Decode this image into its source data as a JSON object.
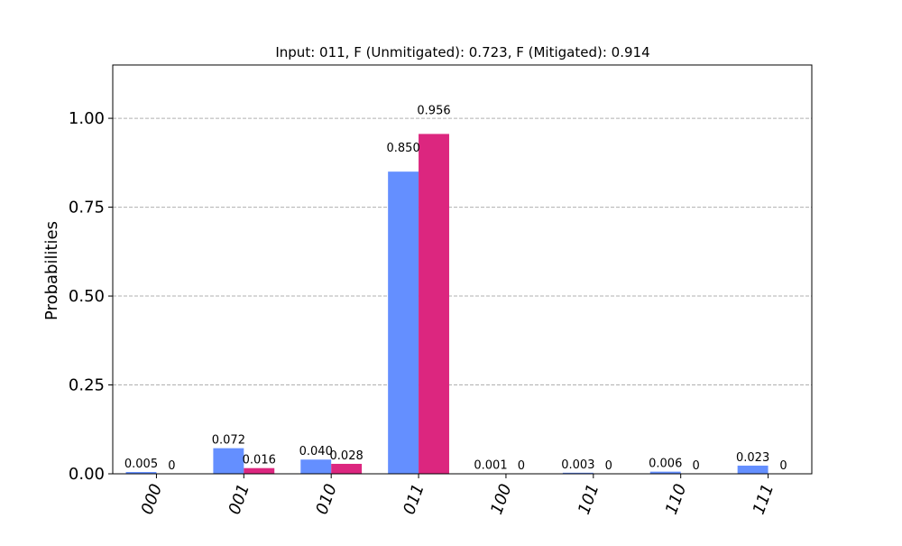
{
  "chart_data": {
    "type": "bar",
    "title": "Input: 011, F (Unmitigated): 0.723, F (Mitigated): 0.914",
    "xlabel": "",
    "ylabel": "Probabilities",
    "ylim": [
      0,
      1.15
    ],
    "yticks": [
      0.0,
      0.25,
      0.5,
      0.75,
      1.0
    ],
    "ytick_labels": [
      "0.00",
      "0.25",
      "0.50",
      "0.75",
      "1.00"
    ],
    "grid": "y-dashed",
    "categories": [
      "000",
      "001",
      "010",
      "011",
      "100",
      "101",
      "110",
      "111"
    ],
    "series": [
      {
        "color": "#648fff",
        "values": [
          0.005,
          0.072,
          0.04,
          0.85,
          0.001,
          0.003,
          0.006,
          0.023
        ],
        "labels": [
          "0.005",
          "0.072",
          "0.040",
          "0.850",
          "0.001",
          "0.003",
          "0.006",
          "0.023"
        ]
      },
      {
        "color": "#dc267f",
        "values": [
          0,
          0.016,
          0.028,
          0.956,
          0,
          0,
          0,
          0
        ],
        "labels": [
          "0",
          "0.016",
          "0.028",
          "0.956",
          "0",
          "0",
          "0",
          "0"
        ]
      }
    ]
  }
}
